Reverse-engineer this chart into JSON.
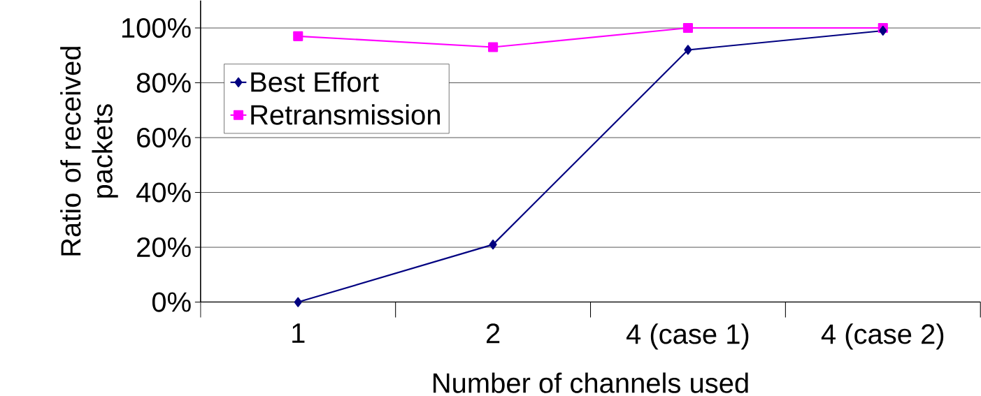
{
  "chart_data": {
    "type": "line",
    "xlabel": "Number of channels used",
    "ylabel": "Ratio of received packets",
    "categories": [
      "1",
      "2",
      "4 (case 1)",
      "4 (case 2)"
    ],
    "series": [
      {
        "name": "Best Effort",
        "color": "#000080",
        "marker": "diamond",
        "values": [
          0,
          21,
          92,
          99
        ]
      },
      {
        "name": "Retransmission",
        "color": "#ff00ff",
        "marker": "square",
        "values": [
          97,
          93,
          100,
          100
        ]
      }
    ],
    "ylim": [
      0,
      110
    ],
    "yticks": [
      {
        "value": 0,
        "label": "0%"
      },
      {
        "value": 20,
        "label": "20%"
      },
      {
        "value": 40,
        "label": "40%"
      },
      {
        "value": 60,
        "label": "60%"
      },
      {
        "value": 80,
        "label": "80%"
      },
      {
        "value": 100,
        "label": "100%"
      }
    ],
    "grid": "y",
    "legend": "top left"
  }
}
